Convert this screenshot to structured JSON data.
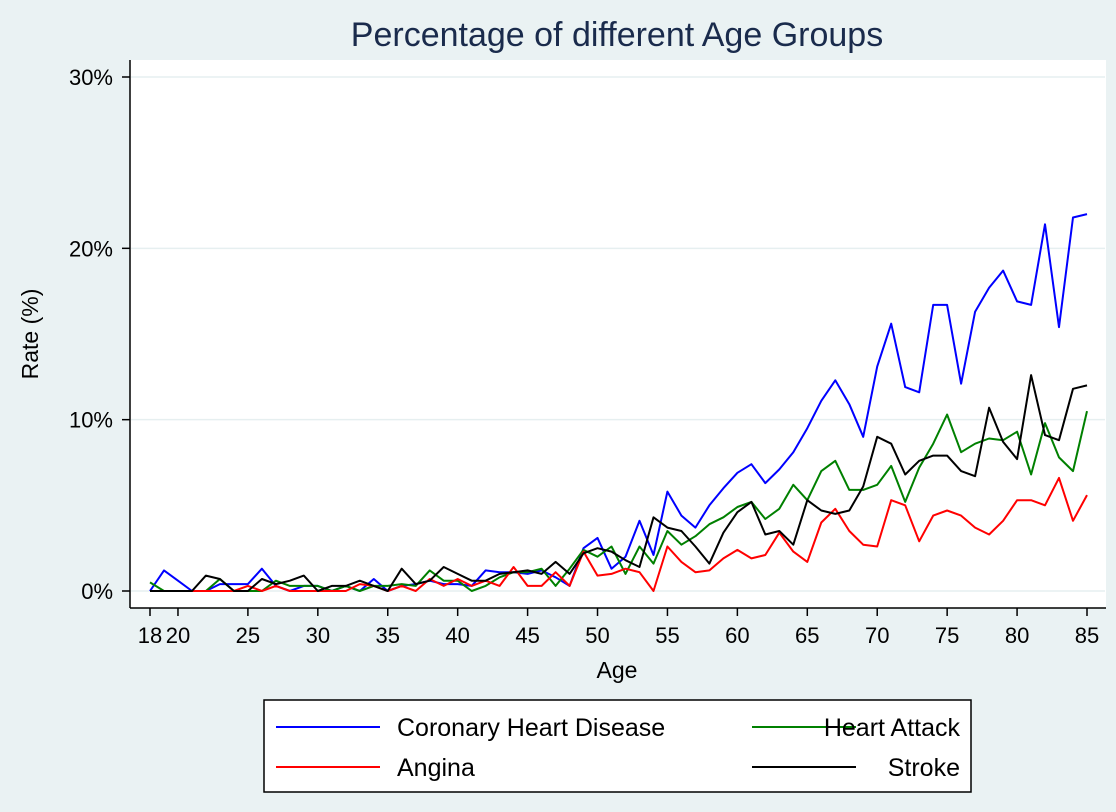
{
  "chart_data": {
    "type": "line",
    "title": "Percentage of different Age Groups",
    "xlabel": "Age",
    "ylabel": "Rate (%)",
    "xlim": [
      18,
      85
    ],
    "ylim": [
      0,
      30
    ],
    "x_ticks": [
      18,
      20,
      25,
      30,
      35,
      40,
      45,
      50,
      55,
      60,
      65,
      70,
      75,
      80,
      85
    ],
    "y_ticks": [
      0,
      10,
      20,
      30
    ],
    "y_tick_labels": [
      "0%",
      "10%",
      "20%",
      "30%"
    ],
    "grid": "horizontal",
    "legend": {
      "position": "bottom",
      "columns": 2
    },
    "x": [
      18,
      19,
      20,
      21,
      22,
      23,
      24,
      25,
      26,
      27,
      28,
      29,
      30,
      31,
      32,
      33,
      34,
      35,
      36,
      37,
      38,
      39,
      40,
      41,
      42,
      43,
      44,
      45,
      46,
      47,
      48,
      49,
      50,
      51,
      52,
      53,
      54,
      55,
      56,
      57,
      58,
      59,
      60,
      61,
      62,
      63,
      64,
      65,
      66,
      67,
      68,
      69,
      70,
      71,
      72,
      73,
      74,
      75,
      76,
      77,
      78,
      79,
      80,
      81,
      82,
      83,
      84,
      85
    ],
    "series": [
      {
        "name": "Coronary Heart Disease",
        "color": "#0000ff",
        "values": [
          0,
          1.2,
          0.6,
          0,
          0,
          0.4,
          0.4,
          0.4,
          1.3,
          0.3,
          0,
          0.3,
          0.3,
          0,
          0.3,
          0,
          0.7,
          0,
          0.3,
          0.4,
          0.6,
          0.4,
          0.4,
          0.3,
          1.2,
          1.1,
          1.1,
          1.0,
          1.2,
          0.8,
          0.3,
          2.5,
          3.1,
          1.3,
          2.0,
          4.1,
          2.1,
          5.8,
          4.4,
          3.7,
          5.0,
          6.0,
          6.9,
          7.4,
          6.3,
          7.1,
          8.1,
          9.5,
          11.1,
          12.3,
          10.9,
          9.0,
          13.1,
          15.6,
          11.9,
          11.6,
          16.7,
          16.7,
          12.1,
          16.3,
          17.7,
          18.7,
          16.9,
          16.7,
          21.4,
          15.4,
          21.8,
          22.0
        ]
      },
      {
        "name": "Heart Attack",
        "color": "#008000",
        "values": [
          0.5,
          0,
          0,
          0,
          0,
          0.7,
          0,
          0,
          0,
          0.6,
          0.3,
          0.3,
          0.3,
          0,
          0.3,
          0,
          0.3,
          0.3,
          0.4,
          0.3,
          1.2,
          0.6,
          0.6,
          0,
          0.3,
          0.8,
          1.1,
          1.1,
          1.3,
          0.3,
          1.3,
          2.4,
          2.0,
          2.6,
          1.0,
          2.6,
          1.6,
          3.5,
          2.7,
          3.2,
          3.9,
          4.3,
          4.9,
          5.2,
          4.2,
          4.8,
          6.2,
          5.3,
          7.0,
          7.6,
          5.9,
          5.9,
          6.2,
          7.3,
          5.2,
          7.2,
          8.6,
          10.3,
          8.1,
          8.6,
          8.9,
          8.8,
          9.3,
          6.8,
          9.8,
          7.8,
          7.0,
          10.5
        ]
      },
      {
        "name": "Angina",
        "color": "#ff0000",
        "values": [
          0,
          0,
          0,
          0,
          0,
          0,
          0,
          0.3,
          0,
          0.3,
          0,
          0,
          0,
          0,
          0,
          0.4,
          0.3,
          0,
          0.3,
          0,
          0.7,
          0.3,
          0.7,
          0.3,
          0.6,
          0.3,
          1.4,
          0.3,
          0.3,
          1.1,
          0.3,
          2.3,
          0.9,
          1.0,
          1.3,
          1.1,
          0,
          2.6,
          1.7,
          1.1,
          1.2,
          1.9,
          2.4,
          1.9,
          2.1,
          3.4,
          2.3,
          1.7,
          4.0,
          4.8,
          3.5,
          2.7,
          2.6,
          5.3,
          5.0,
          2.9,
          4.4,
          4.7,
          4.4,
          3.7,
          3.3,
          4.1,
          5.3,
          5.3,
          5.0,
          6.6,
          4.1,
          5.6
        ]
      },
      {
        "name": "Stroke",
        "color": "#000000",
        "values": [
          0,
          0,
          0,
          0,
          0.9,
          0.7,
          0,
          0,
          0.7,
          0.4,
          0.6,
          0.9,
          0,
          0.3,
          0.3,
          0.6,
          0.3,
          0,
          1.3,
          0.4,
          0.6,
          1.4,
          1.0,
          0.6,
          0.6,
          1.0,
          1.1,
          1.2,
          1.0,
          1.7,
          1.0,
          2.2,
          2.5,
          2.3,
          1.8,
          1.4,
          4.3,
          3.7,
          3.5,
          2.6,
          1.6,
          3.4,
          4.6,
          5.2,
          3.3,
          3.5,
          2.7,
          5.3,
          4.7,
          4.5,
          4.7,
          6.1,
          9.0,
          8.6,
          6.8,
          7.6,
          7.9,
          7.9,
          7.0,
          6.7,
          10.7,
          8.7,
          7.7,
          12.6,
          9.1,
          8.8,
          11.8,
          12.0
        ]
      }
    ]
  }
}
